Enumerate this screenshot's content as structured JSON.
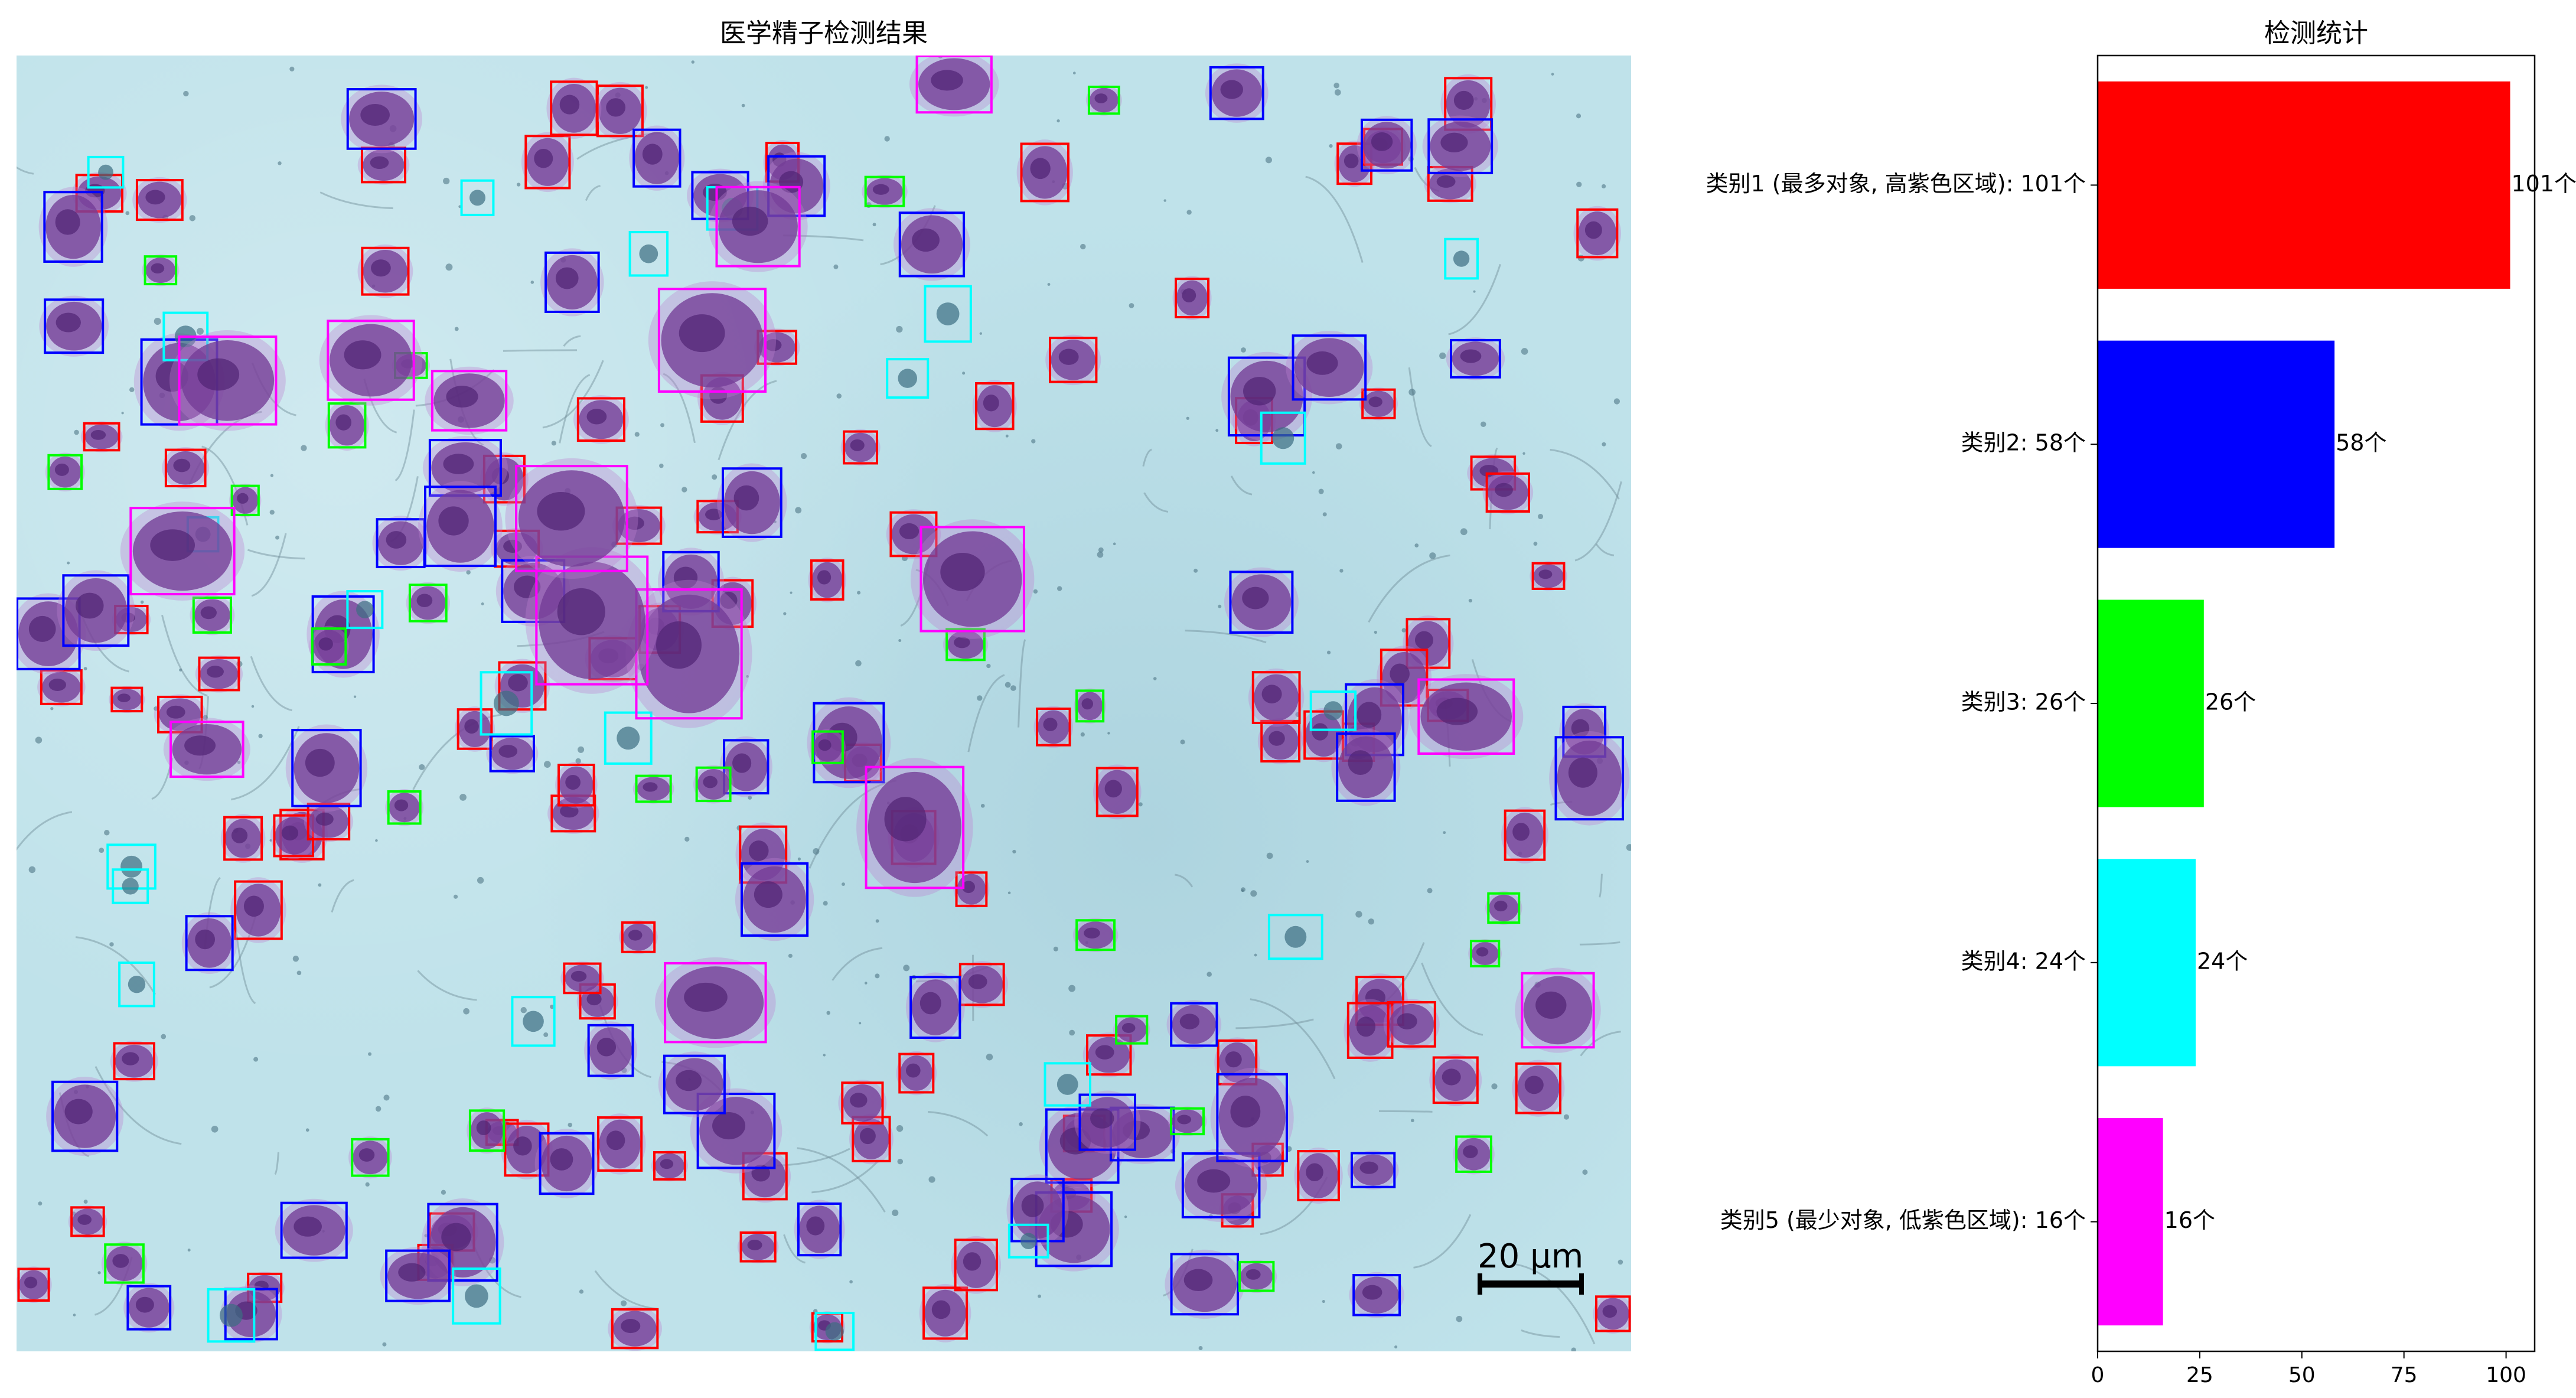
{
  "left_title": "医学精子检测结果",
  "right_title": "检测统计",
  "scale_label": "20 μm",
  "category_colors": [
    "#ff0000",
    "#0000ff",
    "#00ff00",
    "#00ffff",
    "#ff00ff"
  ],
  "chart_data": {
    "type": "bar",
    "orientation": "horizontal",
    "title": "检测统计",
    "categories": [
      "类别1 (最多对象, 高紫色区域): 101个",
      "类别2: 58个",
      "类别3: 26个",
      "类别4: 24个",
      "类别5 (最少对象, 低紫色区域): 16个"
    ],
    "values": [
      101,
      58,
      26,
      24,
      16
    ],
    "value_labels": [
      "101个",
      "58个",
      "26个",
      "24个",
      "16个"
    ],
    "colors": [
      "#ff0000",
      "#0000ff",
      "#00ff00",
      "#00ffff",
      "#ff00ff"
    ],
    "xlim": [
      0,
      107
    ],
    "xticks": [
      0,
      25,
      50,
      75,
      100
    ],
    "xlabel": "",
    "ylabel": "",
    "grid": false
  }
}
